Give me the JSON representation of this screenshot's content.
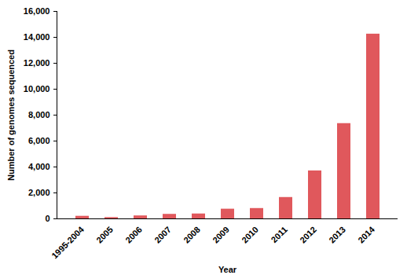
{
  "chart_data": {
    "type": "bar",
    "x_label": "Year",
    "y_label": "Number of genomes sequenced",
    "categories": [
      "1995-2004",
      "2005",
      "2006",
      "2007",
      "2008",
      "2009",
      "2010",
      "2011",
      "2012",
      "2013",
      "2014"
    ],
    "values": [
      200,
      100,
      230,
      350,
      380,
      750,
      800,
      1650,
      3700,
      7350,
      14250
    ],
    "color": "#e0585c",
    "ylim": [
      0,
      16000
    ],
    "yticks": [
      0,
      {
        "value": 2000,
        "label": "2,000"
      },
      {
        "value": 4000,
        "label": "4,000"
      },
      {
        "value": 6000,
        "label": "6,000"
      },
      {
        "value": 8000,
        "label": "8,000"
      },
      {
        "value": 10000,
        "label": "10,000"
      },
      {
        "value": 12000,
        "label": "12,000"
      },
      {
        "value": 14000,
        "label": "14,000"
      },
      {
        "value": 16000,
        "label": "16,000"
      }
    ],
    "grid": false
  }
}
